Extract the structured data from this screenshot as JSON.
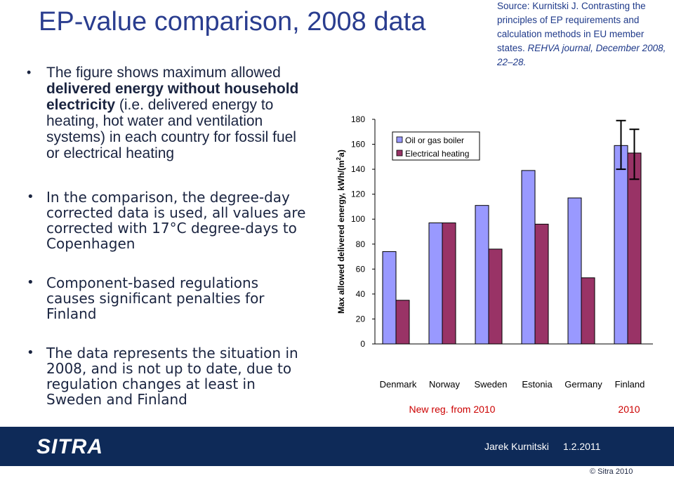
{
  "slide": {
    "title": "EP-value comparison, 2008 data",
    "bullets": {
      "b1_pre": "The figure shows maximum allowed ",
      "b1_bold": "delivered energy without household electricity",
      "b1_post": " (i.e. delivered energy to heating, hot water and ventilation systems) in each country for fossil fuel or electrical heating",
      "b2": "In the comparison, the degree-day corrected data is used, all values are corrected with 17°C degree-days to Copenhagen",
      "b3": "Component-based regulations causes significant penalties for Finland",
      "b4": "The data represents the situation in 2008, and is not up to date, due to regulation changes at least in Sweden and Finland"
    },
    "source": {
      "plain": "Source: Kurnitski J. Contrasting the principles of EP requirements and calculation methods in EU member states. ",
      "italic": "REHVA journal, December 2008, 22–28."
    },
    "footer": {
      "logo": "SITRA",
      "author": "Jarek Kurnitski",
      "date": "1.2.2011",
      "copyright": "© Sitra 2010"
    }
  },
  "colors": {
    "oil": "#9999ff",
    "electric": "#993366",
    "accent_red": "#cc0000",
    "footer_bg": "#0e2a58"
  },
  "chart_data": {
    "type": "bar",
    "ylabel_main": "Max allowed delivered energy, kWh/(m",
    "ylabel_sup": "2",
    "ylabel_end": "a)",
    "ylim": [
      0,
      180
    ],
    "yticks": [
      0,
      20,
      40,
      60,
      80,
      100,
      120,
      140,
      160,
      180
    ],
    "categories": [
      "Denmark",
      "Norway",
      "Sweden",
      "Estonia",
      "Germany",
      "Finland"
    ],
    "series": [
      {
        "name": "Oil or gas boiler",
        "values": [
          74,
          97,
          111,
          139,
          117,
          159
        ]
      },
      {
        "name": "Electrical heating",
        "values": [
          35,
          97,
          76,
          96,
          53,
          153
        ]
      }
    ],
    "error_bars": {
      "category": "Finland",
      "oil": [
        140,
        179
      ],
      "electric": [
        132,
        172
      ]
    },
    "annotations": {
      "new_reg": "New reg. from 2010",
      "finland_year": "2010"
    },
    "legend": "top-left"
  }
}
